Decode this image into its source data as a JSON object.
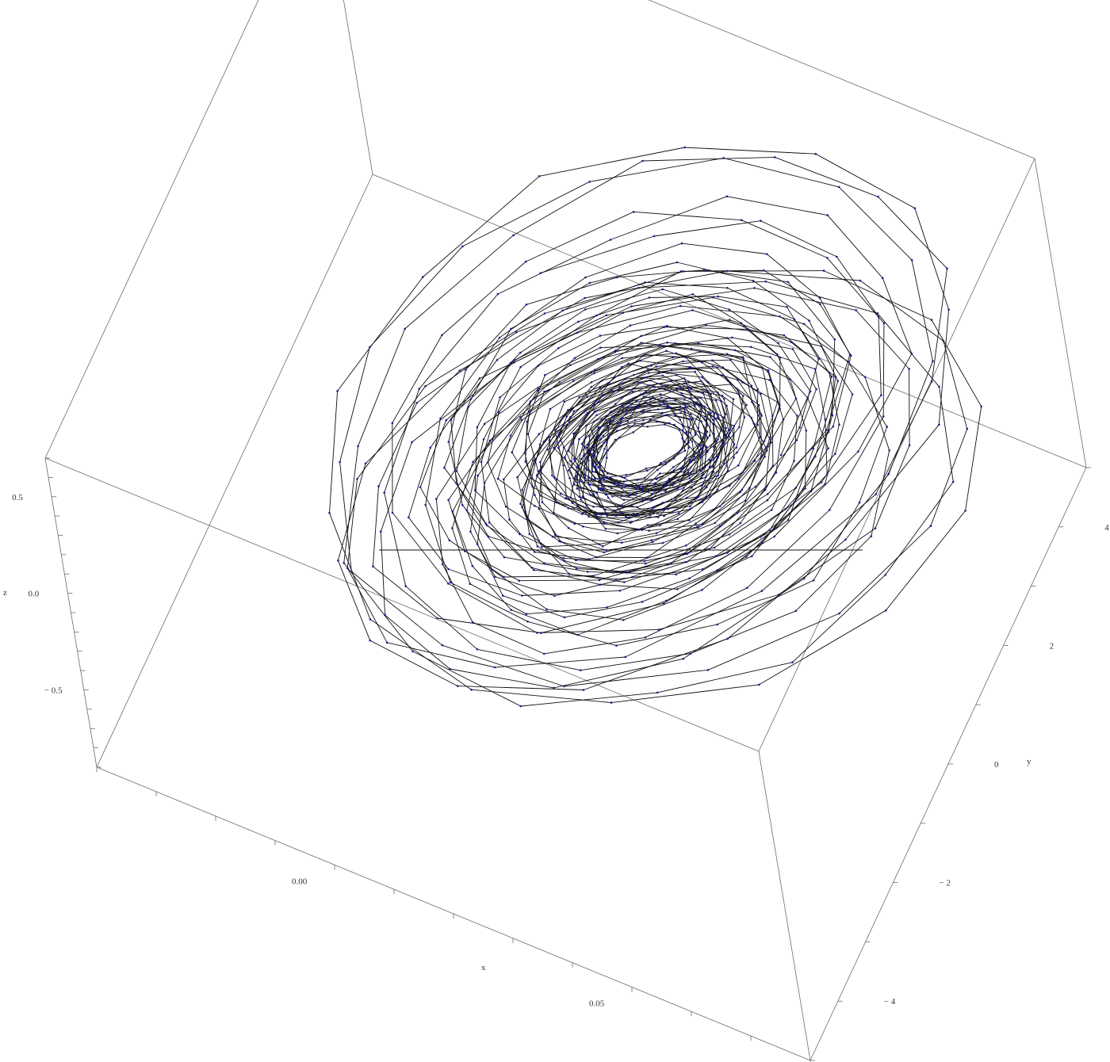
{
  "chart_data": {
    "type": "scatter",
    "title": "",
    "xlabel": "x",
    "ylabel": "y",
    "zlabel": "z",
    "xlim": [
      -0.04,
      0.08
    ],
    "ylim": [
      -5,
      5
    ],
    "zlim": [
      -0.9,
      0.7
    ],
    "x_ticks": [
      {
        "value": 0.0,
        "label": "0.00"
      },
      {
        "value": 0.05,
        "label": "0.05"
      }
    ],
    "y_ticks": [
      {
        "value": -4,
        "label": "− 4"
      },
      {
        "value": -2,
        "label": "− 2"
      },
      {
        "value": 0,
        "label": "0"
      },
      {
        "value": 2,
        "label": "2"
      },
      {
        "value": 4,
        "label": "4"
      }
    ],
    "z_ticks": [
      {
        "value": -0.5,
        "label": "− 0.5"
      },
      {
        "value": 0.0,
        "label": "0.0"
      },
      {
        "value": 0.5,
        "label": "0.5"
      }
    ],
    "grid": false,
    "legend": "none",
    "line_color": "#111111",
    "point_color": "#1a1a8c",
    "trajectory": {
      "description_params": {
        "x_center": 0.033,
        "y_center": 0.3,
        "x_amplitude_max": 0.045,
        "y_amplitude_max": 4.6,
        "z_amplitude": 0.35,
        "samples": 1100,
        "phase_step_deg": 26
      }
    }
  }
}
